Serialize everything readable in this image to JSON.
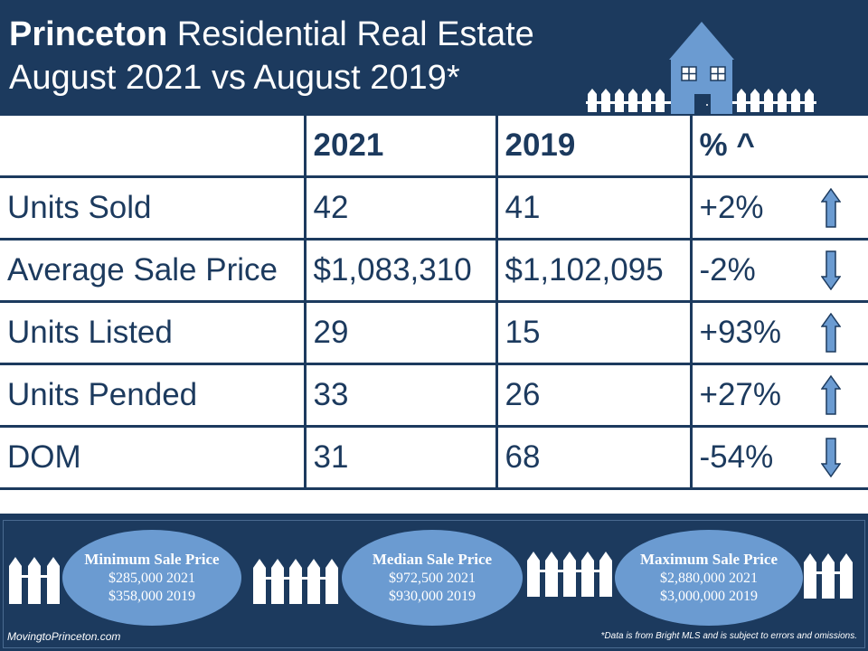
{
  "header": {
    "title_bold": "Princeton",
    "title_rest": " Residential Real Estate",
    "subtitle": "August 2021 vs August 2019*"
  },
  "table": {
    "headers": [
      "",
      "2021",
      "2019",
      "% ^"
    ],
    "rows": [
      {
        "label": "Units Sold",
        "v2021": "42",
        "v2019": "41",
        "pct": "+2%",
        "trend": "up"
      },
      {
        "label": "Average Sale Price",
        "v2021": "$1,083,310",
        "v2019": "$1,102,095",
        "pct": "-2%",
        "trend": "down"
      },
      {
        "label": "Units Listed",
        "v2021": "29",
        "v2019": "15",
        "pct": "+93%",
        "trend": "up"
      },
      {
        "label": "Units Pended",
        "v2021": "33",
        "v2019": "26",
        "pct": "+27%",
        "trend": "up"
      },
      {
        "label": "DOM",
        "v2021": "31",
        "v2019": "68",
        "pct": "-54%",
        "trend": "down"
      }
    ]
  },
  "summary": {
    "minimum": {
      "label": "Minimum Sale Price",
      "line1": "$285,000 2021",
      "line2": "$358,000  2019"
    },
    "median": {
      "label": "Median Sale Price",
      "line1": "$972,500 2021",
      "line2": "$930,000  2019"
    },
    "maximum": {
      "label": "Maximum Sale Price",
      "line1": "$2,880,000 2021",
      "line2": "$3,000,000 2019"
    }
  },
  "footer": {
    "site": "MovingtoPrinceton.com",
    "disclaimer": "*Data is from Bright MLS and is subject to errors and omissions."
  },
  "colors": {
    "navy": "#1c3a5e",
    "accent_blue": "#6b9bd1",
    "white": "#ffffff"
  },
  "icons": {
    "up": "up-arrow-icon",
    "down": "down-arrow-icon",
    "house": "house-icon",
    "fence": "picket-fence-icon"
  }
}
